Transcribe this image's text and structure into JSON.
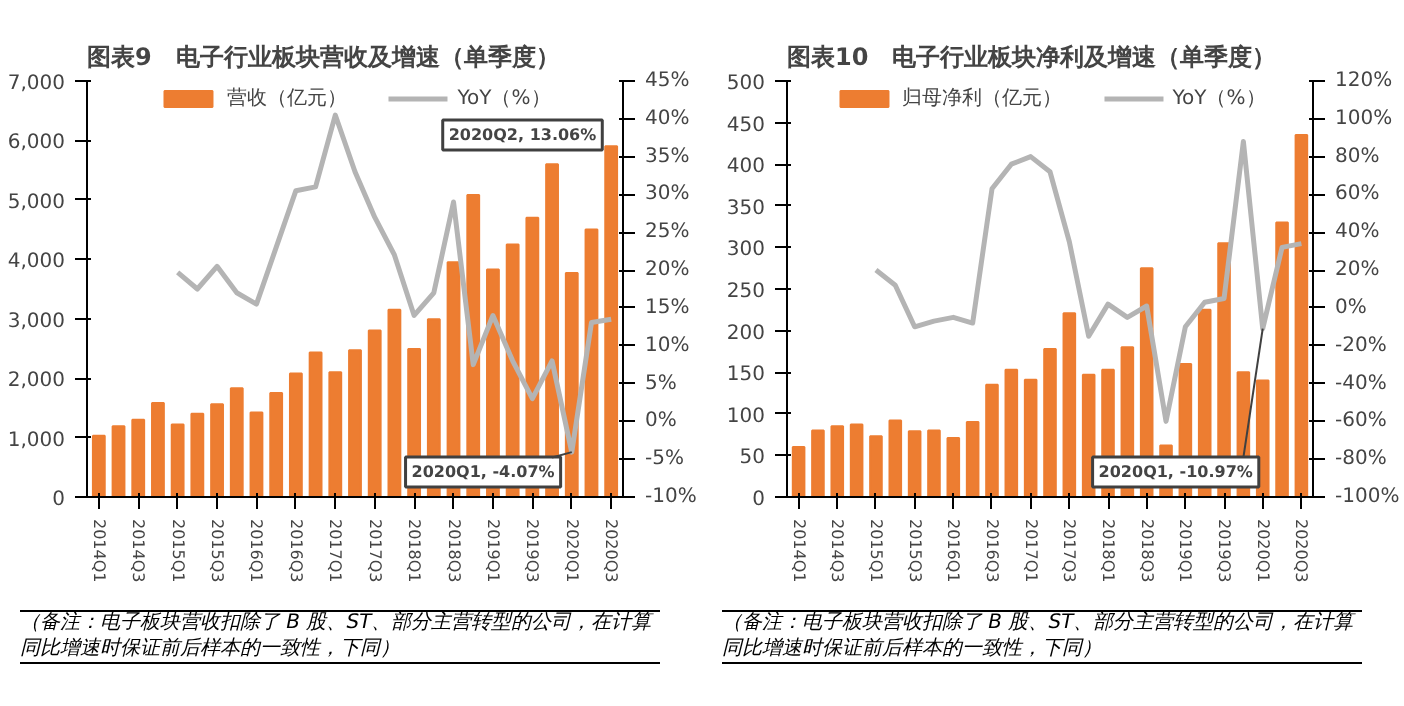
{
  "chart_data": [
    {
      "type": "bar",
      "title": "图表9　电子行业板块营收及增速（单季度）",
      "categories": [
        "2014Q1",
        null,
        "2014Q3",
        null,
        "2015Q1",
        null,
        "2015Q3",
        null,
        "2016Q1",
        null,
        "2016Q3",
        null,
        "2017Q1",
        null,
        "2017Q3",
        null,
        "2018Q1",
        null,
        "2018Q3",
        null,
        "2019Q1",
        null,
        "2019Q3",
        null,
        "2020Q1",
        null,
        "2020Q3"
      ],
      "series": [
        {
          "name": "营收（亿元）",
          "color": "#ed7d31",
          "values": [
            1030,
            1190,
            1300,
            1580,
            1220,
            1400,
            1560,
            1830,
            1420,
            1750,
            2080,
            2430,
            2100,
            2470,
            2800,
            3150,
            2490,
            2990,
            3950,
            5080,
            3830,
            4250,
            4700,
            5600,
            3770,
            4500,
            5900
          ]
        },
        {
          "name": "YoY（%）",
          "type": "line",
          "axis": "y2",
          "color": "#b4b4b4",
          "values": [
            null,
            null,
            null,
            null,
            19.7,
            17.5,
            20.5,
            17,
            15.5,
            23,
            30.5,
            31,
            40.5,
            33,
            27,
            22,
            14,
            17,
            29,
            7.5,
            14,
            8,
            3,
            8,
            -4.07,
            13.06,
            13.5
          ]
        }
      ],
      "ylim": [
        0,
        7000
      ],
      "yticks": [
        0,
        {
          "value": 1000,
          "label": "1,000"
        },
        {
          "value": 2000,
          "label": "2,000"
        },
        {
          "value": 3000,
          "label": "3,000"
        },
        {
          "value": 4000,
          "label": "4,000"
        },
        {
          "value": 5000,
          "label": "5,000"
        },
        {
          "value": 6000,
          "label": "6,000"
        },
        {
          "value": 7000,
          "label": "7,000"
        }
      ],
      "y2lim": [
        -10,
        45
      ],
      "y2ticks": [
        {
          "value": -10,
          "label": "-10%"
        },
        {
          "value": -5,
          "label": "-5%"
        },
        {
          "value": 0,
          "label": "0%"
        },
        {
          "value": 5,
          "label": "5%"
        },
        {
          "value": 10,
          "label": "10%"
        },
        {
          "value": 15,
          "label": "15%"
        },
        {
          "value": 20,
          "label": "20%"
        },
        {
          "value": 25,
          "label": "25%"
        },
        {
          "value": 30,
          "label": "30%"
        },
        {
          "value": 35,
          "label": "35%"
        },
        {
          "value": 40,
          "label": "40%"
        },
        {
          "value": 45,
          "label": "45%"
        }
      ],
      "annotations": [
        "2020Q2, 13.06%",
        {
          "text": "2020Q1, -4.07%",
          "x": "2020Q1",
          "y": -4.07
        },
        "（备注：电子板块营收扣除了 B 股、ST、部分主营转型的公司，在计算同比增速时保证前后样本的一致性，下同）"
      ],
      "legend": "top",
      "grid": false,
      "marker": "none"
    },
    {
      "type": "bar",
      "title": "图表10　电子行业板块净利及增速（单季度）",
      "categories": [
        "2014Q1",
        null,
        "2014Q3",
        null,
        "2015Q1",
        null,
        "2015Q3",
        null,
        "2016Q1",
        null,
        "2016Q3",
        null,
        "2017Q1",
        null,
        "2017Q3",
        null,
        "2018Q1",
        null,
        "2018Q3",
        null,
        "2019Q1",
        null,
        "2019Q3",
        null,
        "2020Q1",
        null,
        "2020Q3"
      ],
      "series": [
        {
          "name": "归母净利（亿元）",
          "color": "#ed7d31",
          "values": [
            60,
            80,
            85,
            87,
            73,
            92,
            79,
            80,
            71,
            90,
            135,
            153,
            141,
            178,
            221,
            147,
            153,
            180,
            275,
            62,
            160,
            225,
            305,
            150,
            140,
            330,
            435
          ]
        },
        {
          "name": "YoY（%）",
          "type": "line",
          "axis": "y2",
          "color": "#b4b4b4",
          "values": [
            null,
            null,
            null,
            null,
            20,
            12,
            -10,
            -7,
            -5,
            -8,
            63,
            76,
            80,
            72,
            35,
            -15,
            2,
            -5,
            1,
            -60,
            -10,
            3,
            5,
            88,
            -10.97,
            32,
            34
          ]
        }
      ],
      "ylim": [
        0,
        500
      ],
      "yticks": [
        0,
        50,
        100,
        150,
        200,
        250,
        300,
        350,
        400,
        450,
        500
      ],
      "y2lim": [
        -100,
        120
      ],
      "y2ticks": [
        {
          "value": -100,
          "label": "-100%"
        },
        {
          "value": -80,
          "label": "-80%"
        },
        {
          "value": -60,
          "label": "-60%"
        },
        {
          "value": -40,
          "label": "-40%"
        },
        {
          "value": -20,
          "label": "-20%"
        },
        {
          "value": 0,
          "label": "0%"
        },
        {
          "value": 20,
          "label": "20%"
        },
        {
          "value": 40,
          "label": "40%"
        },
        {
          "value": 60,
          "label": "60%"
        },
        {
          "value": 80,
          "label": "80%"
        },
        {
          "value": 100,
          "label": "100%"
        },
        {
          "value": 120,
          "label": "120%"
        }
      ],
      "annotations": [
        {
          "text": "2020Q1, -10.97%",
          "x": "2020Q1",
          "y": -10.97
        },
        "（备注：电子板块营收扣除了 B 股、ST、部分主营转型的公司，在计算同比增速时保证前后样本的一致性，下同）"
      ],
      "legend": "top",
      "grid": false,
      "marker": "none"
    }
  ]
}
